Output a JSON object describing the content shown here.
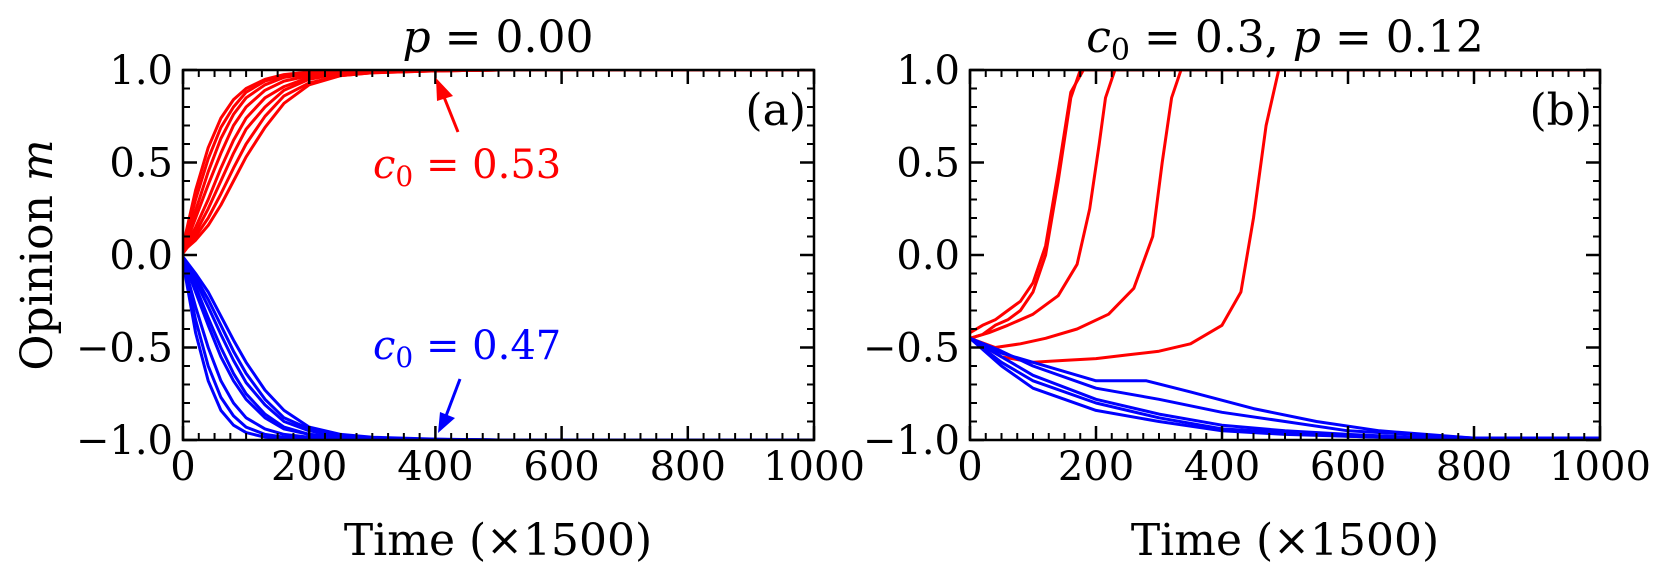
{
  "colors": {
    "red_series": "#ff0000",
    "blue_series": "#0000ff",
    "axes": "#000000",
    "background": "#ffffff"
  },
  "chart_data": [
    {
      "type": "line",
      "panel": "(a)",
      "title": "p = 0.00",
      "title_var": "p",
      "title_rest": " = 0.00",
      "xlabel": "Time (×1500)",
      "ylabel": "Opinion m",
      "ylabel_text": "Opinion ",
      "ylabel_var": "m",
      "xlim": [
        0,
        1000
      ],
      "ylim": [
        -1.0,
        1.0
      ],
      "xticks": [
        0,
        200,
        400,
        600,
        800,
        1000
      ],
      "xtick_labels": [
        "0",
        "200",
        "400",
        "600",
        "800",
        "1000"
      ],
      "yticks": [
        1.0,
        0.5,
        0.0,
        -0.5,
        -1.0
      ],
      "ytick_labels": [
        "1.0",
        "0.5",
        "0.0",
        "−0.5",
        "−1.0"
      ],
      "annotations": [
        {
          "text": "c0 = 0.53",
          "var": "c",
          "sub": "0",
          "rest": " = 0.53",
          "color": "#ff0000",
          "arrow_to": [
            400,
            0.98
          ],
          "arrow_from": [
            440,
            0.6
          ]
        },
        {
          "text": "c0 = 0.47",
          "var": "c",
          "sub": "0",
          "rest": " = 0.47",
          "color": "#0000ff",
          "arrow_to": [
            400,
            -0.98
          ],
          "arrow_from": [
            440,
            -0.72
          ]
        }
      ],
      "series": [
        {
          "name": "c0=0.53 run 1",
          "color": "#ff0000",
          "x": [
            0,
            20,
            40,
            60,
            80,
            100,
            130,
            160,
            200,
            250,
            300,
            400,
            500,
            1000
          ],
          "y": [
            0.02,
            0.2,
            0.38,
            0.55,
            0.7,
            0.8,
            0.89,
            0.94,
            0.97,
            0.985,
            0.99,
            0.995,
            1.0,
            1.0
          ]
        },
        {
          "name": "c0=0.53 run 2",
          "color": "#ff0000",
          "x": [
            0,
            20,
            40,
            60,
            80,
            100,
            130,
            160,
            200,
            250,
            300,
            400,
            500,
            1000
          ],
          "y": [
            0.03,
            0.24,
            0.45,
            0.63,
            0.76,
            0.85,
            0.92,
            0.96,
            0.98,
            0.99,
            0.995,
            0.998,
            1.0,
            1.0
          ]
        },
        {
          "name": "c0=0.53 run 3",
          "color": "#ff0000",
          "x": [
            0,
            20,
            40,
            60,
            80,
            100,
            130,
            160,
            200,
            250,
            300,
            400,
            500,
            1000
          ],
          "y": [
            0.04,
            0.3,
            0.52,
            0.69,
            0.8,
            0.88,
            0.94,
            0.97,
            0.985,
            0.993,
            0.997,
            0.999,
            1.0,
            1.0
          ]
        },
        {
          "name": "c0=0.53 run 4",
          "color": "#ff0000",
          "x": [
            0,
            20,
            40,
            60,
            80,
            100,
            130,
            160,
            200,
            250,
            300,
            400,
            500,
            1000
          ],
          "y": [
            0.02,
            0.15,
            0.3,
            0.47,
            0.62,
            0.74,
            0.85,
            0.91,
            0.96,
            0.98,
            0.99,
            0.995,
            1.0,
            1.0
          ]
        },
        {
          "name": "c0=0.53 run 5",
          "color": "#ff0000",
          "x": [
            0,
            20,
            40,
            60,
            80,
            100,
            130,
            160,
            200,
            250,
            300,
            400,
            500,
            1000
          ],
          "y": [
            0.01,
            0.1,
            0.2,
            0.33,
            0.47,
            0.6,
            0.75,
            0.86,
            0.93,
            0.97,
            0.985,
            0.995,
            1.0,
            1.0
          ]
        },
        {
          "name": "c0=0.53 run 6",
          "color": "#ff0000",
          "x": [
            0,
            20,
            40,
            60,
            80,
            100,
            130,
            160,
            200,
            250,
            300,
            400,
            500,
            1000
          ],
          "y": [
            0.02,
            0.08,
            0.16,
            0.27,
            0.4,
            0.53,
            0.69,
            0.82,
            0.92,
            0.97,
            0.985,
            0.995,
            1.0,
            1.0
          ]
        },
        {
          "name": "c0=0.53 run 7",
          "color": "#ff0000",
          "x": [
            0,
            20,
            40,
            60,
            80,
            100,
            130,
            160,
            200,
            250,
            300,
            400,
            500,
            1000
          ],
          "y": [
            0.03,
            0.12,
            0.25,
            0.4,
            0.55,
            0.68,
            0.8,
            0.89,
            0.95,
            0.98,
            0.99,
            0.997,
            1.0,
            1.0
          ]
        },
        {
          "name": "c0=0.53 run 8",
          "color": "#ff0000",
          "x": [
            0,
            20,
            40,
            60,
            80,
            100,
            130,
            160,
            200,
            250,
            300,
            400,
            500,
            1000
          ],
          "y": [
            0.05,
            0.35,
            0.58,
            0.74,
            0.84,
            0.9,
            0.95,
            0.975,
            0.99,
            0.995,
            0.998,
            1.0,
            1.0,
            1.0
          ]
        },
        {
          "name": "c0=0.47 run 1",
          "color": "#0000ff",
          "x": [
            0,
            20,
            40,
            60,
            80,
            100,
            130,
            160,
            200,
            250,
            300,
            400,
            500,
            1000
          ],
          "y": [
            -0.03,
            -0.28,
            -0.5,
            -0.68,
            -0.8,
            -0.88,
            -0.94,
            -0.97,
            -0.985,
            -0.993,
            -0.997,
            -0.999,
            -1.0,
            -1.0
          ]
        },
        {
          "name": "c0=0.47 run 2",
          "color": "#0000ff",
          "x": [
            0,
            20,
            40,
            60,
            80,
            100,
            130,
            160,
            200,
            250,
            300,
            400,
            500,
            1000
          ],
          "y": [
            -0.02,
            -0.2,
            -0.38,
            -0.55,
            -0.68,
            -0.78,
            -0.88,
            -0.94,
            -0.97,
            -0.985,
            -0.993,
            -0.998,
            -1.0,
            -1.0
          ]
        },
        {
          "name": "c0=0.47 run 3",
          "color": "#0000ff",
          "x": [
            0,
            20,
            40,
            60,
            80,
            100,
            130,
            160,
            200,
            250,
            300,
            400,
            500,
            1000
          ],
          "y": [
            -0.02,
            -0.14,
            -0.28,
            -0.43,
            -0.57,
            -0.69,
            -0.81,
            -0.9,
            -0.95,
            -0.98,
            -0.99,
            -0.997,
            -1.0,
            -1.0
          ]
        },
        {
          "name": "c0=0.47 run 4",
          "color": "#0000ff",
          "x": [
            0,
            20,
            40,
            60,
            80,
            100,
            130,
            160,
            200,
            250,
            300,
            400,
            500,
            1000
          ],
          "y": [
            -0.01,
            -0.1,
            -0.2,
            -0.33,
            -0.46,
            -0.58,
            -0.73,
            -0.84,
            -0.93,
            -0.97,
            -0.985,
            -0.995,
            -1.0,
            -1.0
          ]
        },
        {
          "name": "c0=0.47 run 5",
          "color": "#0000ff",
          "x": [
            0,
            20,
            40,
            60,
            80,
            100,
            130,
            160,
            200,
            250,
            300,
            400,
            500,
            1000
          ],
          "y": [
            -0.03,
            -0.35,
            -0.6,
            -0.77,
            -0.87,
            -0.93,
            -0.97,
            -0.985,
            -0.993,
            -0.997,
            -0.999,
            -1.0,
            -1.0,
            -1.0
          ]
        },
        {
          "name": "c0=0.47 run 6",
          "color": "#0000ff",
          "x": [
            0,
            20,
            40,
            60,
            80,
            100,
            130,
            160,
            200,
            250,
            300,
            400,
            500,
            1000
          ],
          "y": [
            -0.02,
            -0.17,
            -0.34,
            -0.5,
            -0.64,
            -0.75,
            -0.86,
            -0.93,
            -0.97,
            -0.985,
            -0.993,
            -0.998,
            -1.0,
            -1.0
          ]
        },
        {
          "name": "c0=0.47 run 7",
          "color": "#0000ff",
          "x": [
            0,
            20,
            40,
            60,
            80,
            100,
            130,
            160,
            200,
            250,
            300,
            400,
            500,
            1000
          ],
          "y": [
            -0.02,
            -0.12,
            -0.24,
            -0.38,
            -0.52,
            -0.64,
            -0.78,
            -0.88,
            -0.94,
            -0.975,
            -0.99,
            -0.997,
            -1.0,
            -1.0
          ]
        },
        {
          "name": "c0=0.47 run 8",
          "color": "#0000ff",
          "x": [
            0,
            20,
            40,
            60,
            80,
            100,
            130,
            160,
            200,
            250,
            300,
            400,
            500,
            1000
          ],
          "y": [
            -0.04,
            -0.42,
            -0.68,
            -0.84,
            -0.92,
            -0.96,
            -0.985,
            -0.993,
            -0.997,
            -0.999,
            -1.0,
            -1.0,
            -1.0,
            -1.0
          ]
        }
      ]
    },
    {
      "type": "line",
      "panel": "(b)",
      "title": "c0 = 0.3, p = 0.12",
      "title_var1": "c",
      "title_sub": "0",
      "title_mid": " = 0.3, ",
      "title_var2": "p",
      "title_rest": " = 0.12",
      "xlabel": "Time (×1500)",
      "xlim": [
        0,
        1000
      ],
      "ylim": [
        -1.0,
        1.0
      ],
      "xticks": [
        0,
        200,
        400,
        600,
        800,
        1000
      ],
      "xtick_labels": [
        "0",
        "200",
        "400",
        "600",
        "800",
        "1000"
      ],
      "yticks": [
        1.0,
        0.5,
        0.0,
        -0.5,
        -1.0
      ],
      "ytick_labels": [
        "1.0",
        "0.5",
        "0.0",
        "−0.5",
        "−1.0"
      ],
      "series": [
        {
          "name": "red run 1",
          "color": "#ff0000",
          "x": [
            0,
            20,
            40,
            60,
            80,
            100,
            120,
            140,
            160,
            175,
            190,
            1000
          ],
          "y": [
            -0.45,
            -0.43,
            -0.38,
            -0.35,
            -0.3,
            -0.2,
            0.0,
            0.4,
            0.85,
            1.0,
            1.0,
            1.0
          ]
        },
        {
          "name": "red run 2",
          "color": "#ff0000",
          "x": [
            0,
            20,
            40,
            60,
            80,
            100,
            120,
            140,
            160,
            180,
            1000
          ],
          "y": [
            -0.42,
            -0.38,
            -0.35,
            -0.3,
            -0.25,
            -0.15,
            0.05,
            0.45,
            0.88,
            1.0,
            1.0
          ]
        },
        {
          "name": "red run 3",
          "color": "#ff0000",
          "x": [
            0,
            30,
            60,
            100,
            140,
            170,
            190,
            205,
            215,
            230,
            1000
          ],
          "y": [
            -0.45,
            -0.42,
            -0.38,
            -0.32,
            -0.22,
            -0.05,
            0.25,
            0.6,
            0.85,
            1.0,
            1.0
          ]
        },
        {
          "name": "red run 4",
          "color": "#ff0000",
          "x": [
            0,
            40,
            80,
            120,
            170,
            220,
            260,
            290,
            305,
            320,
            335,
            1000
          ],
          "y": [
            -0.45,
            -0.5,
            -0.48,
            -0.45,
            -0.4,
            -0.32,
            -0.18,
            0.1,
            0.5,
            0.85,
            1.0,
            1.0
          ]
        },
        {
          "name": "red run 5",
          "color": "#ff0000",
          "x": [
            0,
            50,
            100,
            150,
            200,
            250,
            300,
            350,
            400,
            430,
            450,
            470,
            490,
            1000
          ],
          "y": [
            -0.45,
            -0.55,
            -0.58,
            -0.57,
            -0.56,
            -0.54,
            -0.52,
            -0.48,
            -0.38,
            -0.2,
            0.2,
            0.7,
            1.0,
            1.0
          ]
        },
        {
          "name": "blue run 1",
          "color": "#0000ff",
          "x": [
            0,
            50,
            100,
            200,
            300,
            400,
            500,
            600,
            700,
            800,
            1000
          ],
          "y": [
            -0.45,
            -0.55,
            -0.65,
            -0.78,
            -0.86,
            -0.92,
            -0.95,
            -0.97,
            -0.985,
            -0.99,
            -0.99
          ]
        },
        {
          "name": "blue run 2",
          "color": "#0000ff",
          "x": [
            0,
            50,
            100,
            200,
            280,
            350,
            450,
            550,
            650,
            800,
            1000
          ],
          "y": [
            -0.45,
            -0.53,
            -0.58,
            -0.68,
            -0.68,
            -0.74,
            -0.83,
            -0.9,
            -0.95,
            -0.99,
            -0.99
          ]
        },
        {
          "name": "blue run 3",
          "color": "#0000ff",
          "x": [
            0,
            50,
            100,
            200,
            300,
            400,
            500,
            600,
            700,
            800,
            1000
          ],
          "y": [
            -0.45,
            -0.58,
            -0.68,
            -0.8,
            -0.88,
            -0.94,
            -0.96,
            -0.98,
            -0.99,
            -0.99,
            -0.99
          ]
        },
        {
          "name": "blue run 4",
          "color": "#0000ff",
          "x": [
            0,
            50,
            100,
            200,
            300,
            400,
            500,
            600,
            700,
            800,
            1000
          ],
          "y": [
            -0.45,
            -0.52,
            -0.6,
            -0.72,
            -0.78,
            -0.85,
            -0.9,
            -0.95,
            -0.97,
            -0.99,
            -0.99
          ]
        },
        {
          "name": "blue run 5",
          "color": "#0000ff",
          "x": [
            0,
            50,
            100,
            200,
            300,
            400,
            500,
            600,
            700,
            800,
            1000
          ],
          "y": [
            -0.45,
            -0.6,
            -0.72,
            -0.84,
            -0.9,
            -0.95,
            -0.97,
            -0.98,
            -0.99,
            -0.99,
            -0.99
          ]
        }
      ]
    }
  ]
}
